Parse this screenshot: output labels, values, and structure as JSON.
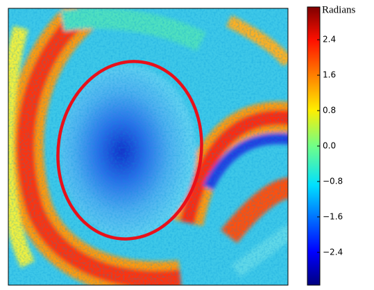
{
  "chart_data": {
    "type": "heatmap",
    "colorbar": {
      "label": "Radians",
      "lim": [
        -3.14,
        3.14
      ],
      "ticks": [
        2.4,
        1.6,
        0.8,
        {
          "value": 0,
          "label": "0.0"
        },
        {
          "value": -0.8,
          "label": "−0.8"
        },
        {
          "value": -1.6,
          "label": "−1.6"
        },
        {
          "value": -2.4,
          "label": "−2.4"
        }
      ]
    }
  }
}
